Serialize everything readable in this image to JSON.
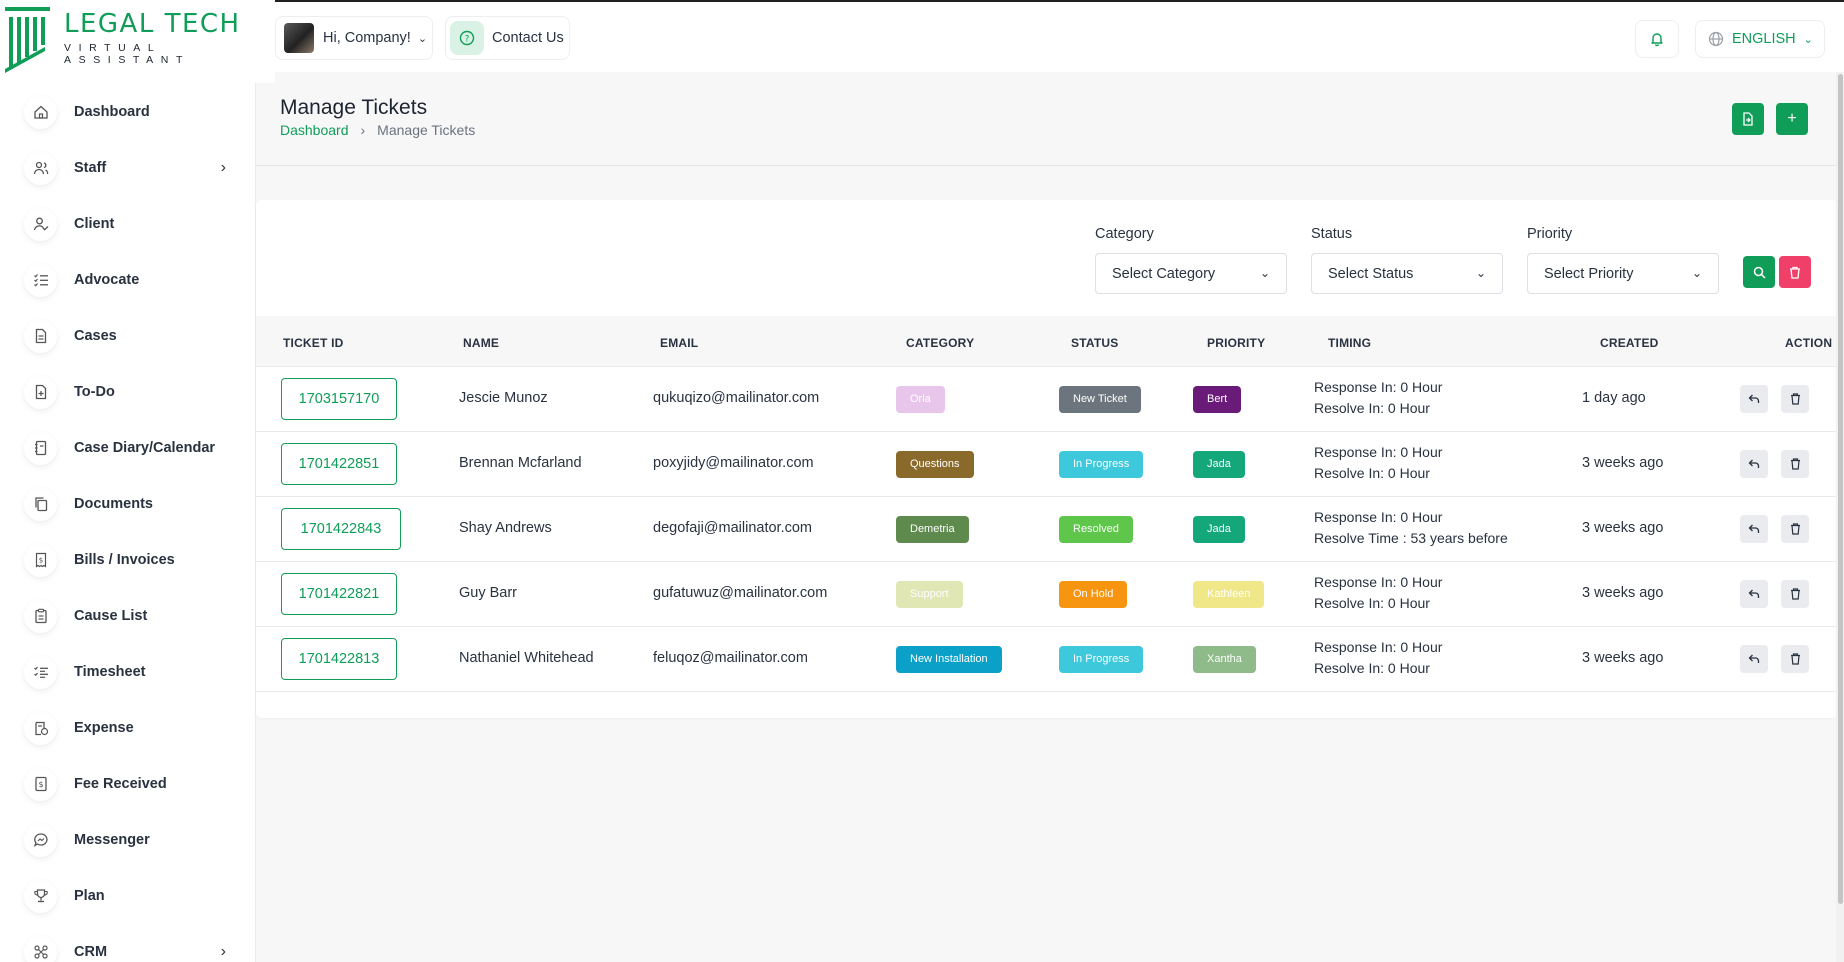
{
  "brand": {
    "title": "LEGAL TECH",
    "subtitle": "VIRTUAL ASSISTANT",
    "color": "#0f9d58"
  },
  "sidebar": {
    "items": [
      {
        "label": "Dashboard",
        "icon": "home-icon",
        "chevron": false
      },
      {
        "label": "Staff",
        "icon": "users-icon",
        "chevron": true
      },
      {
        "label": "Client",
        "icon": "user-check-icon",
        "chevron": false
      },
      {
        "label": "Advocate",
        "icon": "list-check-icon",
        "chevron": false
      },
      {
        "label": "Cases",
        "icon": "file-icon",
        "chevron": false
      },
      {
        "label": "To-Do",
        "icon": "file-plus-icon",
        "chevron": false
      },
      {
        "label": "Case Diary/Calendar",
        "icon": "notebook-icon",
        "chevron": false
      },
      {
        "label": "Documents",
        "icon": "copy-icon",
        "chevron": false
      },
      {
        "label": "Bills / Invoices",
        "icon": "invoice-icon",
        "chevron": false
      },
      {
        "label": "Cause List",
        "icon": "clipboard-icon",
        "chevron": false
      },
      {
        "label": "Timesheet",
        "icon": "checklist-icon",
        "chevron": false
      },
      {
        "label": "Expense",
        "icon": "receipt-icon",
        "chevron": false
      },
      {
        "label": "Fee Received",
        "icon": "dollar-icon",
        "chevron": false
      },
      {
        "label": "Messenger",
        "icon": "chat-icon",
        "chevron": false
      },
      {
        "label": "Plan",
        "icon": "trophy-icon",
        "chevron": false
      },
      {
        "label": "CRM",
        "icon": "network-icon",
        "chevron": true
      }
    ]
  },
  "topbar": {
    "greeting": "Hi, Company!",
    "contact": "Contact Us",
    "language": "ENGLISH"
  },
  "page": {
    "title": "Manage Tickets",
    "breadcrumb": {
      "root": "Dashboard",
      "separator": "›",
      "current": "Manage Tickets"
    }
  },
  "filters": {
    "category": {
      "label": "Category",
      "value": "Select Category"
    },
    "status": {
      "label": "Status",
      "value": "Select Status"
    },
    "priority": {
      "label": "Priority",
      "value": "Select Priority"
    }
  },
  "table": {
    "headers": [
      "TICKET ID",
      "NAME",
      "EMAIL",
      "CATEGORY",
      "STATUS",
      "PRIORITY",
      "TIMING",
      "CREATED",
      "ACTION"
    ],
    "rows": [
      {
        "id": "1703157170",
        "name": "Jescie Munoz",
        "email": "qukuqizo@mailinator.com",
        "category": "Orla",
        "category_color": "#e8c6ec",
        "status": "New Ticket",
        "status_color": "#6c757d",
        "priority": "Bert",
        "priority_color": "#6a1b7a",
        "timing1": "Response In: 0 Hour",
        "timing2": "Resolve In: 0 Hour",
        "created": "1 day ago"
      },
      {
        "id": "1701422851",
        "name": "Brennan Mcfarland",
        "email": "poxyjidy@mailinator.com",
        "category": "Questions",
        "category_color": "#8a6a2a",
        "status": "In Progress",
        "status_color": "#3ec8dc",
        "priority": "Jada",
        "priority_color": "#14a77a",
        "timing1": "Response In: 0 Hour",
        "timing2": "Resolve In: 0 Hour",
        "created": "3 weeks ago"
      },
      {
        "id": "1701422843",
        "name": "Shay Andrews",
        "email": "degofaji@mailinator.com",
        "category": "Demetria",
        "category_color": "#5e8a4e",
        "status": "Resolved",
        "status_color": "#5ec64a",
        "priority": "Jada",
        "priority_color": "#14a77a",
        "timing1": "Response In: 0 Hour",
        "timing2": "Resolve Time : 53 years before",
        "created": "3 weeks ago"
      },
      {
        "id": "1701422821",
        "name": "Guy Barr",
        "email": "gufatuwuz@mailinator.com",
        "category": "Support",
        "category_color": "#e0e6b4",
        "status": "On Hold",
        "status_color": "#f79410",
        "priority": "Kathleen",
        "priority_color": "#efe788",
        "timing1": "Response In: 0 Hour",
        "timing2": "Resolve In: 0 Hour",
        "created": "3 weeks ago"
      },
      {
        "id": "1701422813",
        "name": "Nathaniel Whitehead",
        "email": "feluqoz@mailinator.com",
        "category": "New Installation",
        "category_color": "#0aa0c8",
        "status": "In Progress",
        "status_color": "#3ec8dc",
        "priority": "Xantha",
        "priority_color": "#8fba8a",
        "timing1": "Response In: 0 Hour",
        "timing2": "Resolve In: 0 Hour",
        "created": "3 weeks ago"
      }
    ]
  }
}
